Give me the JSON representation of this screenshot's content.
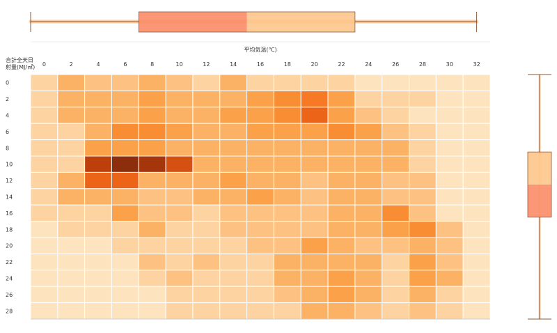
{
  "chart_data": {
    "type": "heatmap",
    "x_title": "平均気温(℃)",
    "y_title_line1": "合計全天日",
    "y_title_line2": "射量(MJ/㎡)",
    "x_ticks": [
      "0",
      "2",
      "4",
      "6",
      "8",
      "10",
      "12",
      "14",
      "16",
      "18",
      "20",
      "22",
      "24",
      "26",
      "28",
      "30",
      "32"
    ],
    "y_ticks": [
      "0",
      "2",
      "4",
      "6",
      "8",
      "10",
      "12",
      "14",
      "16",
      "18",
      "20",
      "22",
      "24",
      "26",
      "28"
    ],
    "values": [
      [
        2,
        4,
        3,
        3,
        4,
        3,
        2,
        4,
        2,
        2,
        2,
        2,
        1,
        1,
        1,
        1,
        1
      ],
      [
        2,
        4,
        4,
        4,
        5,
        4,
        4,
        4,
        5,
        6,
        7,
        5,
        2,
        2,
        2,
        1,
        1
      ],
      [
        2,
        4,
        4,
        4,
        5,
        4,
        4,
        5,
        5,
        6,
        8,
        5,
        3,
        2,
        1,
        1,
        1
      ],
      [
        2,
        2,
        4,
        6,
        6,
        5,
        4,
        4,
        5,
        5,
        5,
        6,
        5,
        3,
        2,
        1,
        1
      ],
      [
        2,
        2,
        5,
        5,
        5,
        4,
        4,
        4,
        4,
        4,
        4,
        4,
        4,
        4,
        2,
        1,
        1
      ],
      [
        2,
        2,
        10,
        12,
        11,
        9,
        4,
        4,
        4,
        4,
        4,
        4,
        4,
        4,
        2,
        1,
        1
      ],
      [
        2,
        4,
        8,
        8,
        4,
        4,
        4,
        5,
        4,
        4,
        3,
        4,
        4,
        3,
        3,
        1,
        1
      ],
      [
        2,
        4,
        4,
        4,
        3,
        3,
        4,
        4,
        5,
        4,
        3,
        4,
        4,
        3,
        3,
        1,
        1
      ],
      [
        2,
        2,
        2,
        5,
        3,
        3,
        2,
        3,
        3,
        3,
        3,
        4,
        4,
        6,
        3,
        1,
        1
      ],
      [
        1,
        2,
        2,
        2,
        4,
        2,
        2,
        3,
        3,
        3,
        3,
        4,
        4,
        5,
        6,
        3,
        1
      ],
      [
        1,
        1,
        1,
        2,
        2,
        2,
        2,
        2,
        3,
        3,
        5,
        4,
        3,
        3,
        4,
        3,
        1
      ],
      [
        1,
        1,
        1,
        1,
        3,
        2,
        3,
        2,
        2,
        4,
        4,
        4,
        4,
        2,
        5,
        3,
        1
      ],
      [
        1,
        1,
        1,
        1,
        2,
        3,
        2,
        2,
        2,
        4,
        4,
        5,
        4,
        2,
        5,
        4,
        1
      ],
      [
        1,
        1,
        1,
        1,
        1,
        2,
        2,
        2,
        2,
        3,
        4,
        5,
        4,
        2,
        4,
        2,
        1
      ],
      [
        1,
        1,
        1,
        1,
        1,
        2,
        2,
        2,
        2,
        2,
        4,
        4,
        3,
        2,
        3,
        2,
        1
      ]
    ],
    "x_box": {
      "min": -0.5,
      "q1": 7.5,
      "median": 15.5,
      "q3": 23.5,
      "max": 32.5
    },
    "y_box": {
      "min": -1.0,
      "q1": 8.5,
      "median": 12.5,
      "q3": 16.5,
      "max": 29.0
    },
    "colors": {
      "scale": [
        "#fde4bf",
        "#fdbf7c",
        "#fb9a3e",
        "#f56c1b",
        "#c2410c",
        "#8c2d0b"
      ],
      "box_fill_light": "#fdc58a",
      "box_fill_dark": "#fb8c68",
      "box_line": "#8a5a3a",
      "box_points": "#fcb77a",
      "gridline": "#ffffff",
      "axis_line": "#cccccc"
    },
    "legend": "none",
    "grid": true
  }
}
